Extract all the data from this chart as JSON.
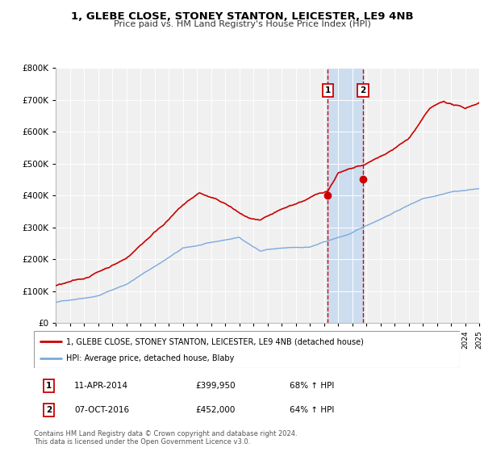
{
  "title": "1, GLEBE CLOSE, STONEY STANTON, LEICESTER, LE9 4NB",
  "subtitle": "Price paid vs. HM Land Registry's House Price Index (HPI)",
  "legend_line1": "1, GLEBE CLOSE, STONEY STANTON, LEICESTER, LE9 4NB (detached house)",
  "legend_line2": "HPI: Average price, detached house, Blaby",
  "sale1_date": "11-APR-2014",
  "sale1_price": "£399,950",
  "sale1_hpi": "68% ↑ HPI",
  "sale2_date": "07-OCT-2016",
  "sale2_price": "£452,000",
  "sale2_hpi": "64% ↑ HPI",
  "footer1": "Contains HM Land Registry data © Crown copyright and database right 2024.",
  "footer2": "This data is licensed under the Open Government Licence v3.0.",
  "sale1_year": 2014.28,
  "sale2_year": 2016.77,
  "sale1_value": 399950,
  "sale2_value": 452000,
  "hpi_color": "#7aaadd",
  "price_color": "#cc0000",
  "background_color": "#f0f0f0",
  "shade_color": "#ccddf0",
  "ylim": [
    0,
    800000
  ],
  "xlim": [
    1995,
    2025
  ],
  "noise_seed": 42
}
